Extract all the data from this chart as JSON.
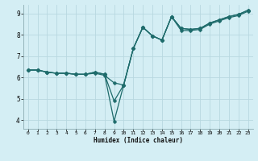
{
  "xlabel": "Humidex (Indice chaleur)",
  "bg_color": "#d4eef4",
  "grid_color": "#b8d8e0",
  "line_color": "#1e6b6b",
  "xlim": [
    -0.5,
    23.5
  ],
  "ylim": [
    3.6,
    9.4
  ],
  "xticks": [
    0,
    1,
    2,
    3,
    4,
    5,
    6,
    7,
    8,
    9,
    10,
    11,
    12,
    13,
    14,
    15,
    16,
    17,
    18,
    19,
    20,
    21,
    22,
    23
  ],
  "yticks": [
    4,
    5,
    6,
    7,
    8,
    9
  ],
  "line1_x": [
    0,
    1,
    2,
    3,
    4,
    5,
    6,
    7,
    8,
    9,
    10,
    11,
    12,
    13,
    14,
    15,
    16,
    17,
    18,
    19,
    20,
    21,
    22,
    23
  ],
  "line1_y": [
    6.35,
    6.35,
    6.25,
    6.2,
    6.2,
    6.15,
    6.15,
    6.2,
    6.1,
    5.75,
    5.65,
    7.35,
    8.35,
    7.95,
    7.75,
    8.85,
    8.2,
    8.2,
    8.25,
    8.5,
    8.65,
    8.8,
    8.9,
    9.1
  ],
  "line2_x": [
    0,
    1,
    2,
    3,
    4,
    5,
    6,
    7,
    8,
    9,
    10,
    11,
    12,
    13,
    14,
    15,
    16,
    17,
    18,
    19,
    20,
    21,
    22,
    23
  ],
  "line2_y": [
    6.35,
    6.35,
    6.25,
    6.2,
    6.2,
    6.15,
    6.15,
    6.25,
    6.15,
    4.9,
    5.65,
    7.35,
    8.35,
    7.95,
    7.75,
    8.85,
    8.3,
    8.25,
    8.3,
    8.55,
    8.7,
    8.85,
    8.95,
    9.15
  ],
  "line3_x": [
    0,
    1,
    2,
    3,
    4,
    5,
    6,
    7,
    8,
    9,
    10,
    11,
    12,
    13,
    14,
    15,
    16,
    17,
    18,
    19,
    20,
    21,
    22,
    23
  ],
  "line3_y": [
    6.35,
    6.35,
    6.25,
    6.2,
    6.2,
    6.15,
    6.15,
    6.25,
    6.15,
    3.95,
    5.65,
    7.35,
    8.35,
    7.95,
    7.75,
    8.85,
    8.3,
    8.25,
    8.3,
    8.55,
    8.7,
    8.85,
    8.95,
    9.15
  ]
}
